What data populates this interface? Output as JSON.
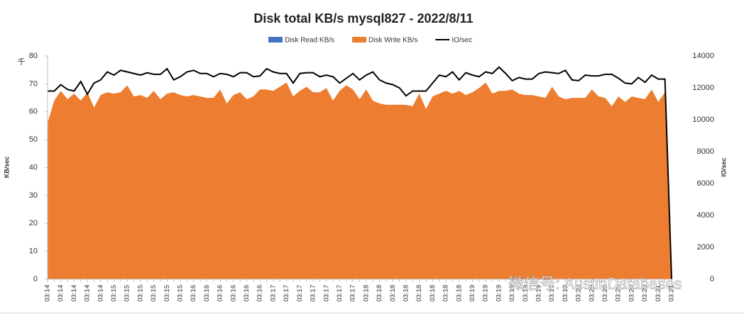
{
  "chart_data": {
    "type": "area-line",
    "title": "Disk total KB/s mysql827 - 2022/8/11",
    "y_label": "KB/sec",
    "y_unit": "千",
    "y2_label": "IO/sec",
    "watermark": "微信号: AustinDatabases",
    "categories": [
      "03:14",
      null,
      "03:14",
      null,
      "03:14",
      null,
      "03:14",
      null,
      "03:14",
      null,
      "03:15",
      null,
      "03:15",
      null,
      "03:15",
      null,
      "03:15",
      null,
      "03:15",
      null,
      "03:15",
      null,
      "03:16",
      null,
      "03:16",
      null,
      "03:16",
      null,
      "03:16",
      null,
      "03:16",
      null,
      "03:16",
      null,
      "03:17",
      null,
      "03:17",
      null,
      "03:17",
      null,
      "03:17",
      null,
      "03:17",
      null,
      "03:17",
      null,
      "03:17",
      null,
      "03:18",
      null,
      "03:18",
      null,
      "03:18",
      null,
      "03:18",
      null,
      "03:18",
      null,
      "03:18",
      null,
      "03:18",
      null,
      "03:18",
      null,
      "03:19",
      null,
      "03:19",
      null,
      "03:19",
      null,
      "03:19",
      null,
      "03:19",
      null,
      "03:19",
      null,
      "03:19",
      null,
      "03:19",
      null,
      "03:20",
      null,
      "03:20",
      null,
      "03:20",
      null,
      "03:20",
      null,
      "03:20",
      null,
      "03:20",
      null,
      "03:21",
      null,
      "03:21"
    ],
    "series": [
      {
        "name": "Disk Read KB/s",
        "color": "#4472c4",
        "kind": "area",
        "values": [
          0,
          0,
          0,
          0,
          0,
          0,
          0,
          0,
          0,
          0,
          0,
          0,
          0,
          0,
          0,
          0,
          0,
          0,
          0,
          0,
          0,
          0,
          0,
          0,
          0,
          0,
          0,
          0,
          0,
          0,
          0,
          0,
          0,
          0,
          0,
          0,
          0,
          0,
          0,
          0,
          0,
          0,
          0,
          0,
          0,
          0,
          0,
          0,
          0,
          0,
          0,
          0,
          0,
          0,
          0,
          0,
          0,
          0,
          0,
          0,
          0,
          0,
          0,
          0,
          0,
          0,
          0,
          0,
          0,
          0,
          0,
          0,
          0,
          0,
          0,
          0,
          0,
          0,
          0,
          0,
          0,
          0,
          0,
          0,
          0,
          0,
          0,
          0,
          0,
          0,
          0,
          0,
          0,
          0,
          0
        ]
      },
      {
        "name": "Disk Write KB/s",
        "color": "#ed7d31",
        "kind": "area",
        "values": [
          56,
          64,
          67.5,
          64.5,
          66.5,
          64,
          67,
          61.5,
          66,
          67,
          66.5,
          67,
          69.5,
          65.5,
          66,
          65,
          67.5,
          64.5,
          66.5,
          67,
          66,
          65.5,
          66,
          65.5,
          65,
          65,
          68,
          63,
          66,
          67,
          64.5,
          65.5,
          68,
          68,
          67.5,
          69,
          70.5,
          65.5,
          67.5,
          69,
          67,
          67,
          68.5,
          64,
          67.5,
          69.5,
          68,
          64.5,
          68,
          64,
          63,
          62.5,
          62.5,
          62.5,
          62.5,
          62,
          66.5,
          61,
          65.5,
          66.5,
          67.5,
          66.5,
          67.5,
          66,
          67,
          68.5,
          70.5,
          66.5,
          67.5,
          67.5,
          68,
          66.5,
          66,
          66,
          65.5,
          65,
          69,
          65.5,
          64.5,
          65,
          65,
          65,
          68,
          65.5,
          65,
          62,
          65.5,
          63.5,
          65.5,
          65,
          64.5,
          68,
          63.5,
          67,
          0
        ]
      },
      {
        "name": "IO/sec",
        "color": "#000000",
        "kind": "line",
        "axis": "y2",
        "values": [
          11800,
          11800,
          12200,
          11900,
          11800,
          12400,
          11600,
          12300,
          12500,
          13000,
          12800,
          13100,
          13000,
          12900,
          12800,
          12950,
          12850,
          12850,
          13200,
          12500,
          12700,
          13000,
          13100,
          12900,
          12900,
          12700,
          12900,
          12850,
          12700,
          12950,
          12950,
          12700,
          12750,
          13200,
          13000,
          12900,
          12900,
          12300,
          12900,
          12950,
          12950,
          12700,
          12800,
          12700,
          12300,
          12600,
          12900,
          12500,
          12800,
          13000,
          12500,
          12300,
          12200,
          12000,
          11500,
          11800,
          11800,
          11800,
          12300,
          12800,
          12700,
          13000,
          12500,
          12950,
          12800,
          12700,
          13000,
          12900,
          13300,
          12900,
          12450,
          12650,
          12550,
          12550,
          12900,
          13000,
          12950,
          12900,
          13100,
          12500,
          12450,
          12800,
          12750,
          12750,
          12850,
          12850,
          12600,
          12300,
          12250,
          12650,
          12350,
          12800,
          12550,
          12550,
          0
        ]
      }
    ],
    "ylim": [
      0,
      80
    ],
    "yticks": [
      0,
      10,
      20,
      30,
      40,
      50,
      60,
      70,
      80
    ],
    "y2lim": [
      0,
      14000
    ],
    "y2ticks": [
      0,
      2000,
      4000,
      6000,
      8000,
      10000,
      12000,
      14000
    ],
    "grid": false
  }
}
